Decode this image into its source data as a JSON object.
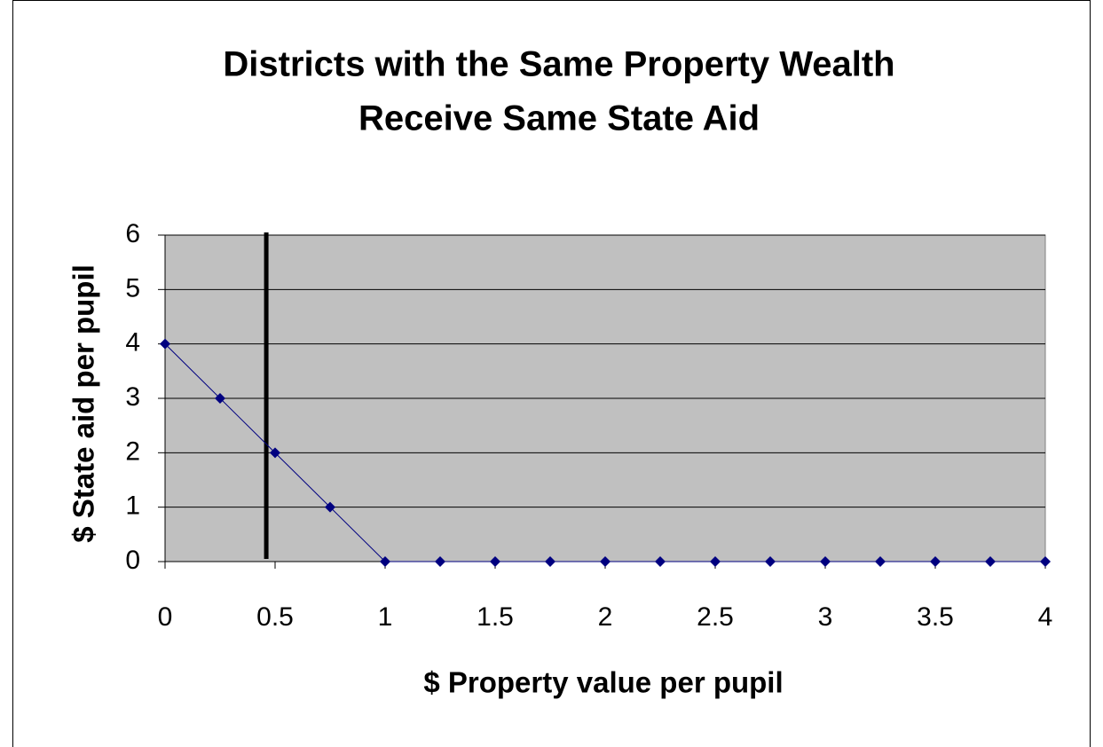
{
  "chart_data": {
    "type": "line",
    "title": [
      "Districts with the Same Property Wealth",
      "Receive Same State Aid"
    ],
    "x_label": "$ Property value per pupil",
    "y_label": "$ State aid per pupil",
    "x": [
      0,
      0.25,
      0.5,
      0.75,
      1,
      1.25,
      1.5,
      1.75,
      2,
      2.25,
      2.5,
      2.75,
      3,
      3.25,
      3.5,
      3.75,
      4
    ],
    "series": [
      {
        "name": "State aid",
        "color": "#000080",
        "values": [
          4,
          3,
          2,
          1,
          0,
          0,
          0,
          0,
          0,
          0,
          0,
          0,
          0,
          0,
          0,
          0,
          0
        ]
      }
    ],
    "xlim": [
      0,
      4
    ],
    "xticks": [
      0,
      0.5,
      1,
      1.5,
      2,
      2.5,
      3,
      3.5,
      4
    ],
    "ylim": [
      0,
      6
    ],
    "yticks": [
      0,
      1,
      2,
      3,
      4,
      5,
      6
    ],
    "grid": true,
    "plot_background": "#c0c0c0",
    "reference_line_x": 0.46,
    "reference_line_color": "#000000"
  }
}
